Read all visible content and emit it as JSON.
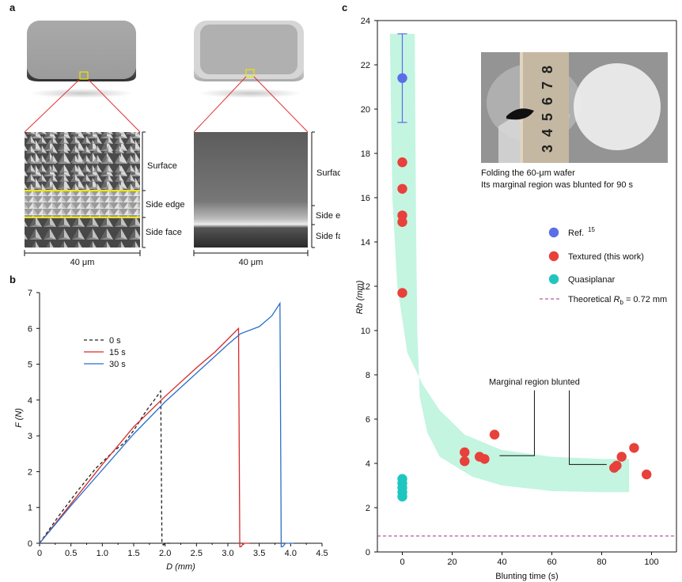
{
  "panel_labels": {
    "a": "a",
    "b": "b",
    "c": "c"
  },
  "panel_a": {
    "zone_labels_left": [
      "Surface",
      "Side edge",
      "Side face"
    ],
    "zone_labels_right": [
      "Surface",
      "Side edge",
      "Side face"
    ],
    "scale_left": "40 μm",
    "scale_right": "40 μm"
  },
  "colors": {
    "black": "#222222",
    "red": "#d62a2a",
    "blue": "#2a6fc9",
    "ref_blue": "#5b6ee8",
    "textured_red": "#e8403a",
    "cyan": "#1fc6bf",
    "band": "#b8f3dc",
    "theoretical": "#a0338f"
  },
  "chart_data": [
    {
      "type": "line",
      "panel": "b",
      "xlabel": "D (mm)",
      "ylabel": "F (N)",
      "xlim": [
        0,
        4.5
      ],
      "ylim": [
        0,
        7
      ],
      "xticks": [
        "0",
        "0.5",
        "1.0",
        "1.5",
        "2.0",
        "2.5",
        "3.0",
        "3.5",
        "4.0",
        "4.5"
      ],
      "yticks": [
        "0",
        "1",
        "2",
        "3",
        "4",
        "5",
        "6",
        "7"
      ],
      "legend_position": "upper-left",
      "series": [
        {
          "name": "0 s",
          "style": "dashed",
          "x": [
            0,
            0.3,
            0.6,
            0.9,
            1.2,
            1.35,
            1.5,
            1.7,
            1.85,
            1.93,
            1.95,
            1.97,
            2.0,
            2.08
          ],
          "y": [
            0,
            0.75,
            1.45,
            2.1,
            2.6,
            2.8,
            3.15,
            3.7,
            4.05,
            4.25,
            0.0,
            -0.05,
            0.0,
            0.0
          ]
        },
        {
          "name": "15 s",
          "style": "solid",
          "x": [
            0,
            0.5,
            1.0,
            1.5,
            2.0,
            2.5,
            2.8,
            3.0,
            3.17,
            3.19,
            3.21,
            3.25,
            3.35
          ],
          "y": [
            0,
            1.1,
            2.2,
            3.25,
            4.1,
            4.9,
            5.35,
            5.7,
            6.0,
            -0.1,
            -0.1,
            0.0,
            0.0
          ]
        },
        {
          "name": "30 s",
          "style": "solid",
          "x": [
            0,
            0.5,
            1.0,
            1.5,
            2.0,
            2.5,
            3.0,
            3.2,
            3.5,
            3.7,
            3.83,
            3.85,
            3.87,
            3.92,
            4.05
          ],
          "y": [
            0,
            1.05,
            2.05,
            3.05,
            3.95,
            4.75,
            5.55,
            5.85,
            6.05,
            6.35,
            6.7,
            -0.1,
            -0.1,
            0.0,
            0.0
          ]
        }
      ]
    },
    {
      "type": "scatter",
      "panel": "c",
      "xlabel": "Blunting time (s)",
      "ylabel": "Rb (mm)",
      "xlim": [
        -10,
        110
      ],
      "ylim": [
        0,
        24
      ],
      "xticks": [
        "0",
        "20",
        "40",
        "60",
        "80",
        "100"
      ],
      "yticks": [
        "0",
        "2",
        "4",
        "6",
        "8",
        "10",
        "12",
        "14",
        "16",
        "18",
        "20",
        "22",
        "24"
      ],
      "series": [
        {
          "name": "Ref. 15",
          "marker": "circle",
          "x": [
            0
          ],
          "y": [
            21.4
          ],
          "error_bar": [
            19.4,
            23.4
          ]
        },
        {
          "name": "Textured (this work)",
          "marker": "circle",
          "x": [
            0,
            0,
            0,
            0,
            0,
            25,
            25,
            31,
            33,
            37,
            85,
            86,
            88,
            93,
            98
          ],
          "y": [
            17.6,
            16.4,
            15.2,
            14.9,
            11.7,
            4.5,
            4.1,
            4.3,
            4.2,
            5.3,
            3.8,
            3.9,
            4.3,
            4.7,
            3.5
          ]
        },
        {
          "name": "Quasiplanar",
          "marker": "circle",
          "x": [
            0,
            0,
            0,
            0,
            0
          ],
          "y": [
            3.3,
            3.1,
            2.9,
            2.7,
            2.5
          ]
        }
      ],
      "reference_line": {
        "label_prefix": "Theoretical ",
        "symbol": "R",
        "symbol_sub": "b",
        "label_suffix": " = 0.72 mm",
        "y": 0.72
      },
      "legend_labels": {
        "ref": "Ref.",
        "ref_sup": "15",
        "textured": "Textured (this work)",
        "quasi": "Quasiplanar"
      },
      "annotation": "Marginal region blunted",
      "inset_caption": [
        "Folding the 60-μm wafer",
        "Its marginal region was blunted for 90 s"
      ],
      "inset_ruler_numbers": [
        "8",
        "7",
        "6",
        "5",
        "4",
        "3"
      ]
    }
  ]
}
